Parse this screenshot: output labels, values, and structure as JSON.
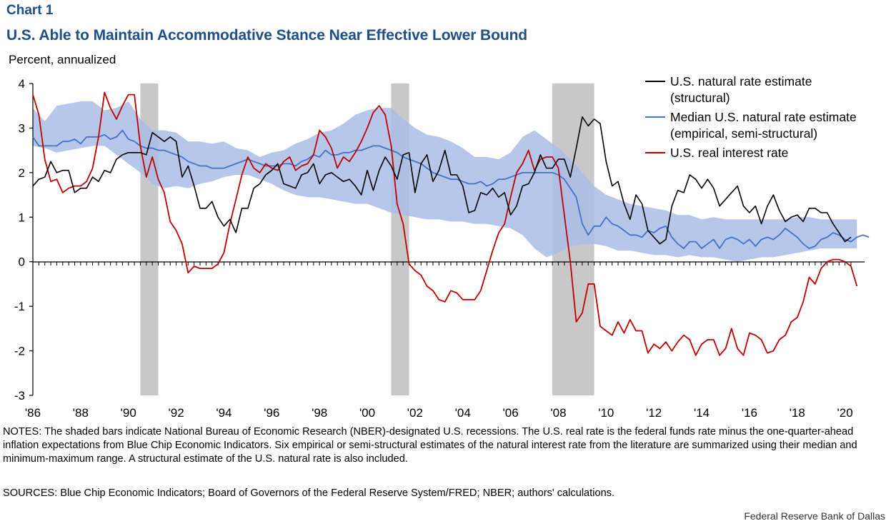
{
  "header": {
    "chart_label": "Chart 1",
    "title": "U.S. Able to Maintain Accommodative Stance Near Effective Lower Bound"
  },
  "footer": {
    "notes": "NOTES: The shaded bars indicate National Bureau of Economic Research (NBER)-designated U.S. recessions. The U.S. real rate is the federal funds rate minus the one-quarter-ahead inflation expectations from Blue Chip Economic Indicators. Six empirical or semi-structural estimates of the natural interest rate from the literature are summarized using their median and minimum-maximum range. A structural estimate of the U.S. natural rate is also included.",
    "sources": "SOURCES: Blue Chip Economic Indicators; Board of Governors of the Federal Reserve System/FRED; NBER; authors' calculations.",
    "credit": "Federal Reserve Bank of Dallas"
  },
  "colors": {
    "structural": "#000000",
    "median": "#4472c4",
    "band": "#aabde6",
    "real_rate": "#c00000",
    "recession": "#c8c8c8"
  },
  "chart_data": {
    "type": "line",
    "ylabel": "Percent, annualized",
    "ylim": [
      -3,
      4
    ],
    "yticks": [
      4,
      3,
      2,
      1,
      0,
      -1,
      -2,
      -3
    ],
    "xlim": [
      1986,
      2020.4
    ],
    "xtick_labels": [
      {
        "year": 1986,
        "label": "'86"
      },
      {
        "year": 1988,
        "label": "'88"
      },
      {
        "year": 1990,
        "label": "'90"
      },
      {
        "year": 1992,
        "label": "'92"
      },
      {
        "year": 1994,
        "label": "'94"
      },
      {
        "year": 1996,
        "label": "'96"
      },
      {
        "year": 1998,
        "label": "'98"
      },
      {
        "year": 2000,
        "label": "'00"
      },
      {
        "year": 2002,
        "label": "'02"
      },
      {
        "year": 2004,
        "label": "'04"
      },
      {
        "year": 2006,
        "label": "'06"
      },
      {
        "year": 2008,
        "label": "'08"
      },
      {
        "year": 2010,
        "label": "'10"
      },
      {
        "year": 2012,
        "label": "'12"
      },
      {
        "year": 2014,
        "label": "'14"
      },
      {
        "year": 2016,
        "label": "'16"
      },
      {
        "year": 2018,
        "label": "'18"
      },
      {
        "year": 2020,
        "label": "'20"
      }
    ],
    "recessions": [
      [
        1990.5,
        1991.25
      ],
      [
        2001.0,
        2001.75
      ],
      [
        2007.75,
        2009.5
      ]
    ],
    "legend": [
      {
        "key": "structural",
        "lines": [
          "U.S. natural rate estimate",
          "(structural)"
        ]
      },
      {
        "key": "median",
        "lines": [
          "Median U.S. natural rate estimate",
          "(empirical, semi-structural)"
        ]
      },
      {
        "key": "real_rate",
        "lines": [
          "U.S. real interest rate"
        ]
      }
    ],
    "series": [
      {
        "key": "structural",
        "name": "U.S. natural rate estimate (structural)",
        "x_start": 1986.0,
        "step": 0.25,
        "values": [
          1.7,
          1.85,
          1.9,
          2.25,
          2.0,
          2.05,
          2.05,
          1.55,
          1.65,
          1.65,
          1.9,
          1.8,
          2.05,
          2.0,
          2.3,
          2.4,
          2.45,
          2.45,
          2.45,
          2.4,
          2.9,
          2.8,
          2.7,
          2.8,
          2.7,
          1.9,
          2.15,
          1.7,
          1.2,
          1.2,
          1.35,
          1.0,
          0.8,
          0.95,
          0.65,
          1.2,
          1.2,
          1.65,
          1.75,
          1.95,
          2.05,
          2.2,
          1.75,
          1.7,
          1.65,
          1.95,
          2.0,
          2.2,
          1.75,
          1.95,
          2.0,
          1.9,
          1.8,
          1.85,
          1.7,
          1.5,
          2.05,
          1.6,
          2.05,
          2.35,
          2.15,
          1.85,
          2.4,
          2.45,
          1.55,
          2.2,
          2.4,
          1.8,
          2.05,
          2.5,
          1.95,
          1.95,
          1.7,
          1.1,
          1.15,
          1.55,
          1.5,
          1.65,
          1.45,
          1.55,
          1.05,
          1.25,
          1.7,
          1.75,
          2.0,
          2.4,
          2.1,
          2.1,
          2.3,
          2.3,
          1.9,
          2.55,
          3.25,
          3.05,
          3.2,
          3.1,
          2.25,
          1.7,
          1.8,
          1.3,
          0.95,
          1.5,
          1.3,
          0.7,
          0.55,
          0.4,
          0.5,
          1.25,
          1.6,
          1.55,
          1.95,
          1.85,
          1.65,
          1.85,
          1.65,
          1.25,
          1.4,
          1.55,
          1.7,
          1.25,
          1.1,
          1.25,
          0.85,
          1.25,
          1.5,
          1.15,
          0.9,
          1.0,
          1.05,
          0.9,
          1.2,
          1.2,
          1.1,
          1.1,
          0.85,
          0.65,
          0.45,
          0.55
        ]
      },
      {
        "key": "median",
        "name": "Median U.S. natural rate estimate",
        "x_start": 1986.0,
        "step": 0.25,
        "values": [
          2.8,
          2.6,
          2.6,
          2.6,
          2.6,
          2.7,
          2.7,
          2.75,
          2.65,
          2.8,
          2.8,
          2.8,
          2.85,
          2.75,
          2.8,
          2.95,
          2.75,
          2.7,
          2.6,
          2.55,
          2.55,
          2.5,
          2.5,
          2.45,
          2.4,
          2.35,
          2.25,
          2.2,
          2.15,
          2.15,
          2.1,
          2.1,
          2.1,
          2.15,
          2.2,
          2.25,
          2.3,
          2.25,
          2.2,
          2.15,
          2.15,
          2.15,
          2.2,
          2.2,
          2.15,
          2.25,
          2.3,
          2.4,
          2.35,
          2.5,
          2.4,
          2.4,
          2.45,
          2.45,
          2.5,
          2.5,
          2.55,
          2.6,
          2.6,
          2.55,
          2.5,
          2.45,
          2.35,
          2.3,
          2.25,
          2.2,
          2.1,
          2.0,
          1.95,
          1.9,
          1.85,
          1.85,
          1.8,
          1.75,
          1.75,
          1.8,
          1.7,
          1.75,
          1.85,
          1.85,
          1.9,
          1.95,
          2.0,
          2.0,
          2.0,
          2.0,
          2.0,
          2.0,
          1.95,
          1.85,
          1.65,
          1.45,
          0.85,
          0.6,
          0.8,
          0.8,
          1.0,
          0.85,
          0.8,
          0.7,
          0.6,
          0.6,
          0.55,
          0.7,
          0.65,
          0.75,
          0.8,
          0.55,
          0.4,
          0.3,
          0.45,
          0.45,
          0.3,
          0.4,
          0.5,
          0.3,
          0.5,
          0.55,
          0.5,
          0.4,
          0.5,
          0.35,
          0.5,
          0.55,
          0.5,
          0.6,
          0.75,
          0.65,
          0.55,
          0.4,
          0.3,
          0.35,
          0.5,
          0.55,
          0.65,
          0.6,
          0.5,
          0.45,
          0.55,
          0.6,
          0.55
        ]
      },
      {
        "key": "real_rate",
        "name": "U.S. real interest rate",
        "x_start": 1986.0,
        "step": 0.25,
        "values": [
          3.75,
          3.3,
          2.3,
          1.8,
          1.85,
          1.55,
          1.65,
          1.7,
          1.7,
          1.8,
          2.1,
          2.8,
          3.8,
          3.45,
          3.2,
          3.5,
          3.75,
          3.75,
          2.6,
          1.9,
          2.35,
          1.85,
          1.55,
          0.9,
          0.7,
          0.4,
          -0.25,
          -0.1,
          -0.15,
          -0.15,
          -0.15,
          -0.05,
          0.2,
          0.85,
          1.4,
          1.95,
          2.35,
          2.1,
          2.0,
          2.2,
          2.1,
          2.05,
          2.25,
          2.35,
          2.05,
          2.15,
          2.2,
          2.4,
          2.95,
          2.8,
          2.55,
          2.1,
          2.35,
          2.25,
          2.45,
          2.7,
          3.0,
          3.35,
          3.5,
          3.3,
          2.6,
          1.3,
          0.85,
          -0.05,
          -0.2,
          -0.3,
          -0.55,
          -0.65,
          -0.85,
          -0.9,
          -0.65,
          -0.7,
          -0.85,
          -0.85,
          -0.85,
          -0.65,
          -0.2,
          0.25,
          0.65,
          0.85,
          1.45,
          2.0,
          2.2,
          2.5,
          2.05,
          2.3,
          2.35,
          2.35,
          2.1,
          1.05,
          0.0,
          -1.35,
          -1.15,
          -0.5,
          -0.5,
          -1.45,
          -1.55,
          -1.65,
          -1.35,
          -1.6,
          -1.3,
          -1.55,
          -1.55,
          -2.05,
          -1.85,
          -1.95,
          -1.8,
          -2.0,
          -1.8,
          -1.65,
          -1.75,
          -2.1,
          -1.85,
          -1.75,
          -1.75,
          -2.1,
          -1.95,
          -1.5,
          -1.95,
          -2.1,
          -1.6,
          -1.65,
          -1.75,
          -2.05,
          -2.0,
          -1.75,
          -1.65,
          -1.35,
          -1.25,
          -0.9,
          -0.35,
          -0.5,
          -0.15,
          0.0,
          0.05,
          0.05,
          0.0,
          -0.1,
          -0.55
        ]
      },
      {
        "key": "band",
        "name": "Minimum-maximum range of natural rate estimates",
        "x_start": 1986.0,
        "step": 0.5,
        "upper": [
          3.45,
          3.15,
          3.5,
          3.55,
          3.6,
          3.6,
          3.4,
          3.45,
          3.6,
          3.2,
          2.95,
          2.95,
          2.9,
          2.7,
          2.7,
          2.65,
          2.7,
          2.55,
          2.5,
          2.35,
          2.45,
          2.5,
          2.65,
          2.75,
          2.9,
          2.95,
          3.1,
          3.3,
          3.4,
          3.45,
          3.45,
          3.2,
          3.0,
          2.85,
          2.8,
          2.7,
          2.55,
          2.35,
          2.35,
          2.3,
          2.45,
          2.8,
          2.95,
          2.75,
          2.55,
          2.3,
          2.0,
          1.7,
          1.5,
          1.4,
          1.3,
          1.25,
          1.2,
          1.15,
          1.05,
          1.05,
          0.95,
          1.0,
          0.95,
          0.95,
          0.95,
          0.95,
          0.95,
          0.95,
          1.0,
          1.0,
          0.95,
          0.95,
          0.95,
          0.95
        ],
        "lower": [
          2.6,
          2.55,
          2.45,
          2.5,
          2.55,
          2.6,
          2.6,
          2.4,
          2.2,
          2.0,
          1.75,
          1.65,
          1.7,
          1.65,
          1.75,
          1.8,
          1.9,
          1.95,
          1.95,
          1.85,
          1.75,
          1.6,
          1.5,
          1.45,
          1.45,
          1.4,
          1.35,
          1.3,
          1.3,
          1.2,
          1.1,
          1.05,
          1.0,
          0.95,
          0.95,
          0.9,
          0.9,
          0.85,
          0.85,
          0.8,
          0.75,
          0.6,
          0.3,
          0.1,
          0.2,
          0.35,
          0.4,
          0.4,
          0.35,
          0.25,
          0.25,
          0.2,
          0.15,
          0.15,
          0.1,
          0.15,
          0.1,
          0.1,
          0.05,
          0.0,
          0.05,
          0.1,
          0.1,
          0.15,
          0.2,
          0.25,
          0.3,
          0.3,
          0.3,
          0.3
        ]
      }
    ]
  }
}
